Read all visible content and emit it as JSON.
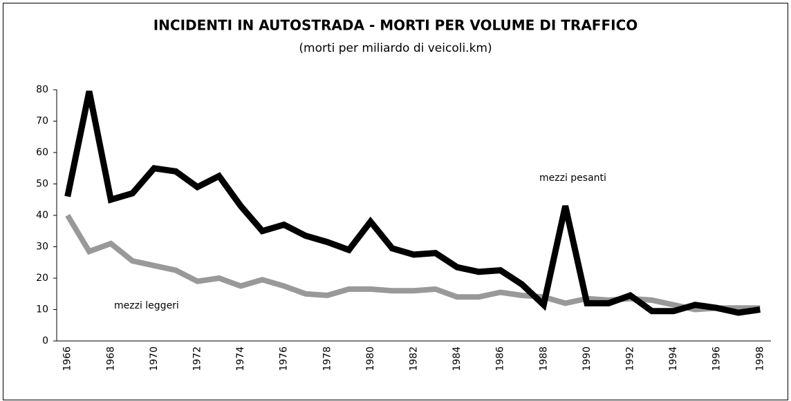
{
  "chart_data": {
    "type": "line",
    "title": "INCIDENTI IN AUTOSTRADA - MORTI PER VOLUME DI TRAFFICO",
    "subtitle": "(morti per miliardo di veicoli.km)",
    "categories": [
      "1966",
      null,
      "1968",
      null,
      "1970",
      null,
      "1972",
      null,
      "1974",
      null,
      "1976",
      null,
      "1978",
      null,
      "1980",
      null,
      "1982",
      null,
      "1984",
      null,
      "1986",
      null,
      "1988",
      null,
      "1990",
      null,
      "1992",
      null,
      "1994",
      null,
      "1996",
      null,
      "1998"
    ],
    "series": [
      {
        "name": "mezzi pesanti",
        "color": "#000000",
        "values": [
          46,
          79.5,
          45,
          47,
          55,
          54,
          49,
          52.5,
          43,
          35,
          37,
          33.5,
          31.5,
          29,
          38,
          29.5,
          27.5,
          28,
          23.5,
          22,
          22.5,
          18,
          11.5,
          43,
          12,
          12,
          14.5,
          9.5,
          9.5,
          11.5,
          10.5,
          9,
          10
        ]
      },
      {
        "name": "mezzi leggeri",
        "color": "#999999",
        "values": [
          40,
          28.5,
          31,
          25.5,
          24,
          22.5,
          19,
          20,
          17.5,
          19.5,
          17.5,
          15,
          14.5,
          16.5,
          16.5,
          16,
          16,
          16.5,
          14,
          14,
          15.5,
          14.5,
          14,
          12,
          13.5,
          13,
          13.5,
          13,
          11.5,
          10,
          10.5,
          10.5,
          10.5
        ]
      }
    ],
    "ylim": [
      0,
      80
    ],
    "yticks": [
      0,
      10,
      20,
      30,
      40,
      50,
      60,
      70,
      80
    ],
    "grid": false
  }
}
